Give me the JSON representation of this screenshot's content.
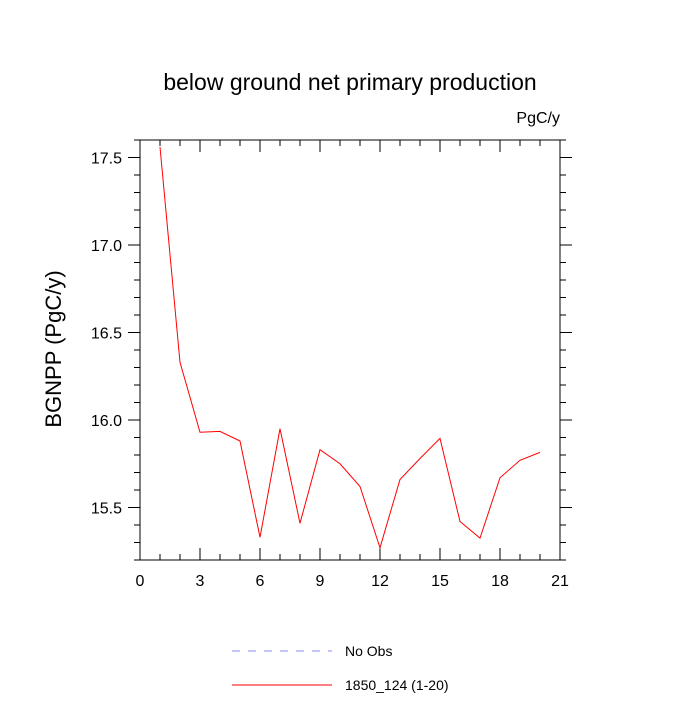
{
  "chart_data": {
    "type": "line",
    "title": "below ground net primary production",
    "units_label": "PgC/y",
    "xlabel": "",
    "ylabel": "BGNPP  (PgC/y)",
    "xlim": [
      0,
      21
    ],
    "ylim": [
      15.2,
      17.6
    ],
    "x_ticks": [
      0,
      3,
      6,
      9,
      12,
      15,
      18,
      21
    ],
    "x_tick_labels": [
      "0",
      "3",
      "6",
      "9",
      "12",
      "15",
      "18",
      "21"
    ],
    "y_ticks": [
      15.5,
      16.0,
      16.5,
      17.0,
      17.5
    ],
    "y_tick_labels": [
      "15.5",
      "16.0",
      "16.5",
      "17.0",
      "17.5"
    ],
    "grid": false,
    "legend_position": "bottom",
    "series": [
      {
        "name": "1850_124 (1-20)",
        "color": "#ff0000",
        "style": "solid",
        "x": [
          1,
          2,
          3,
          4,
          5,
          6,
          7,
          8,
          9,
          10,
          11,
          12,
          13,
          14,
          15,
          16,
          17,
          18,
          19,
          20
        ],
        "values": [
          17.56,
          16.33,
          15.93,
          15.935,
          15.88,
          15.33,
          15.95,
          15.41,
          15.83,
          15.75,
          15.62,
          15.27,
          15.66,
          15.78,
          15.895,
          15.42,
          15.325,
          15.67,
          15.77,
          15.815
        ]
      }
    ],
    "legend": [
      {
        "label": "No Obs",
        "color": "#8a8aff",
        "style": "dashed"
      },
      {
        "label": "1850_124 (1-20)",
        "color": "#ff0000",
        "style": "solid"
      }
    ]
  }
}
